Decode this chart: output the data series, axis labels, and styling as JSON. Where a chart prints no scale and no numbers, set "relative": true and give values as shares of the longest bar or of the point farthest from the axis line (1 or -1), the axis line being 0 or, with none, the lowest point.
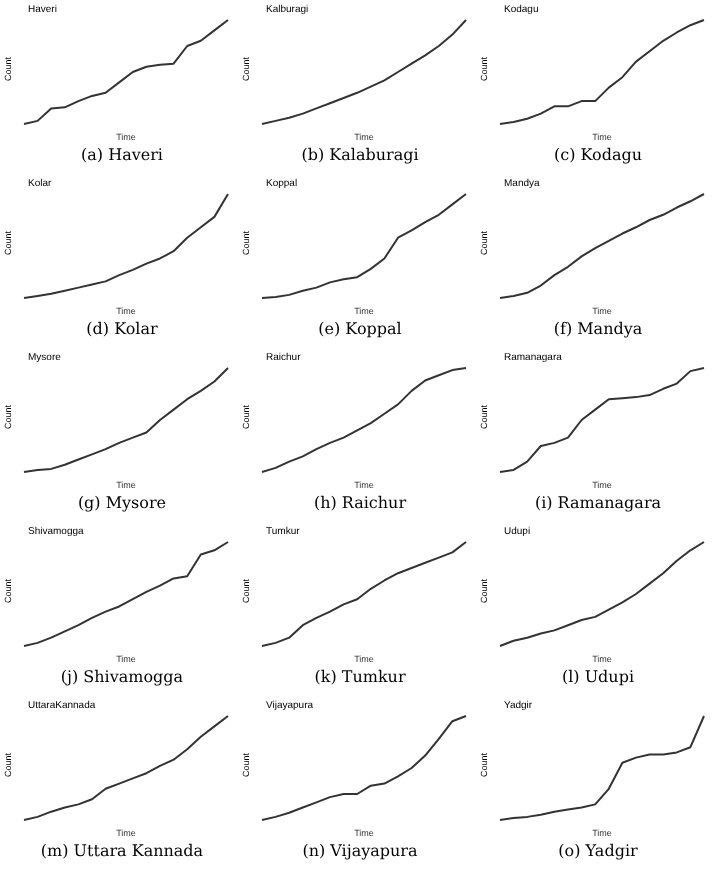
{
  "chart_data": [
    {
      "type": "line",
      "title": "Haveri",
      "xlabel": "Time",
      "ylabel": "Count",
      "annotations": [
        "(a) Haveri"
      ],
      "relative": true,
      "tick_labels": false,
      "categories": [
        null,
        null,
        null,
        null,
        null,
        null,
        null,
        null,
        null,
        null,
        null,
        null,
        null,
        null,
        null,
        null
      ],
      "series": [
        {
          "color": "#333333",
          "values": [
            0,
            0.03,
            0.15,
            0.16,
            0.22,
            0.27,
            0.3,
            0.4,
            0.5,
            0.55,
            0.57,
            0.58,
            0.75,
            0.8,
            0.9,
            1
          ]
        }
      ]
    },
    {
      "type": "line",
      "title": "Kalburagi",
      "xlabel": "Time",
      "ylabel": "Count",
      "annotations": [
        "(b) Kalaburagi"
      ],
      "relative": true,
      "tick_labels": false,
      "categories": [
        null,
        null,
        null,
        null,
        null,
        null,
        null,
        null,
        null,
        null,
        null,
        null,
        null,
        null,
        null,
        null
      ],
      "series": [
        {
          "color": "#333333",
          "values": [
            0,
            0.03,
            0.06,
            0.1,
            0.15,
            0.2,
            0.25,
            0.3,
            0.36,
            0.42,
            0.5,
            0.58,
            0.66,
            0.75,
            0.86,
            1
          ]
        }
      ]
    },
    {
      "type": "line",
      "title": "Kodagu",
      "xlabel": "Time",
      "ylabel": "Count",
      "annotations": [
        "(c) Kodagu"
      ],
      "relative": true,
      "tick_labels": false,
      "categories": [
        null,
        null,
        null,
        null,
        null,
        null,
        null,
        null,
        null,
        null,
        null,
        null,
        null,
        null,
        null,
        null
      ],
      "series": [
        {
          "color": "#333333",
          "values": [
            0,
            0.02,
            0.05,
            0.1,
            0.17,
            0.17,
            0.22,
            0.22,
            0.35,
            0.45,
            0.6,
            0.7,
            0.8,
            0.88,
            0.95,
            1
          ]
        }
      ]
    },
    {
      "type": "line",
      "title": "Kolar",
      "xlabel": "Time",
      "ylabel": "Count",
      "annotations": [
        "(d) Kolar"
      ],
      "relative": true,
      "tick_labels": false,
      "categories": [
        null,
        null,
        null,
        null,
        null,
        null,
        null,
        null,
        null,
        null,
        null,
        null,
        null,
        null,
        null,
        null
      ],
      "series": [
        {
          "color": "#333333",
          "values": [
            0,
            0.02,
            0.04,
            0.07,
            0.1,
            0.13,
            0.16,
            0.22,
            0.27,
            0.33,
            0.38,
            0.45,
            0.58,
            0.68,
            0.78,
            1
          ]
        }
      ]
    },
    {
      "type": "line",
      "title": "Koppal",
      "xlabel": "Time",
      "ylabel": "Count",
      "annotations": [
        "(e) Koppal"
      ],
      "relative": true,
      "tick_labels": false,
      "categories": [
        null,
        null,
        null,
        null,
        null,
        null,
        null,
        null,
        null,
        null,
        null,
        null,
        null,
        null,
        null,
        null
      ],
      "series": [
        {
          "color": "#333333",
          "values": [
            0,
            0.01,
            0.03,
            0.07,
            0.1,
            0.15,
            0.18,
            0.2,
            0.28,
            0.38,
            0.58,
            0.65,
            0.73,
            0.8,
            0.9,
            1
          ]
        }
      ]
    },
    {
      "type": "line",
      "title": "Mandya",
      "xlabel": "Time",
      "ylabel": "Count",
      "annotations": [
        "(f) Mandya"
      ],
      "relative": true,
      "tick_labels": false,
      "categories": [
        null,
        null,
        null,
        null,
        null,
        null,
        null,
        null,
        null,
        null,
        null,
        null,
        null,
        null,
        null,
        null
      ],
      "series": [
        {
          "color": "#333333",
          "values": [
            0,
            0.02,
            0.05,
            0.12,
            0.22,
            0.3,
            0.4,
            0.48,
            0.55,
            0.62,
            0.68,
            0.75,
            0.8,
            0.87,
            0.93,
            1
          ]
        }
      ]
    },
    {
      "type": "line",
      "title": "Mysore",
      "xlabel": "Time",
      "ylabel": "Count",
      "annotations": [
        "(g) Mysore"
      ],
      "relative": true,
      "tick_labels": false,
      "categories": [
        null,
        null,
        null,
        null,
        null,
        null,
        null,
        null,
        null,
        null,
        null,
        null,
        null,
        null,
        null,
        null
      ],
      "series": [
        {
          "color": "#333333",
          "values": [
            0,
            0.02,
            0.03,
            0.07,
            0.12,
            0.17,
            0.22,
            0.28,
            0.33,
            0.38,
            0.5,
            0.6,
            0.7,
            0.78,
            0.87,
            1
          ]
        }
      ]
    },
    {
      "type": "line",
      "title": "Raichur",
      "xlabel": "Time",
      "ylabel": "Count",
      "annotations": [
        "(h) Raichur"
      ],
      "relative": true,
      "tick_labels": false,
      "categories": [
        null,
        null,
        null,
        null,
        null,
        null,
        null,
        null,
        null,
        null,
        null,
        null,
        null,
        null,
        null,
        null
      ],
      "series": [
        {
          "color": "#333333",
          "values": [
            0,
            0.04,
            0.1,
            0.15,
            0.22,
            0.28,
            0.33,
            0.4,
            0.47,
            0.56,
            0.65,
            0.78,
            0.88,
            0.93,
            0.98,
            1
          ]
        }
      ]
    },
    {
      "type": "line",
      "title": "Ramanagara",
      "xlabel": "Time",
      "ylabel": "Count",
      "annotations": [
        "(i) Ramanagara"
      ],
      "relative": true,
      "tick_labels": false,
      "categories": [
        null,
        null,
        null,
        null,
        null,
        null,
        null,
        null,
        null,
        null,
        null,
        null,
        null,
        null,
        null,
        null
      ],
      "series": [
        {
          "color": "#333333",
          "values": [
            0,
            0.02,
            0.1,
            0.25,
            0.28,
            0.33,
            0.5,
            0.6,
            0.7,
            0.71,
            0.72,
            0.74,
            0.8,
            0.85,
            0.97,
            1
          ]
        }
      ]
    },
    {
      "type": "line",
      "title": "Shivamogga",
      "xlabel": "Time",
      "ylabel": "Count",
      "annotations": [
        "(j) Shivamogga"
      ],
      "relative": true,
      "tick_labels": false,
      "categories": [
        null,
        null,
        null,
        null,
        null,
        null,
        null,
        null,
        null,
        null,
        null,
        null,
        null,
        null,
        null,
        null
      ],
      "series": [
        {
          "color": "#333333",
          "values": [
            0,
            0.03,
            0.08,
            0.14,
            0.2,
            0.27,
            0.33,
            0.38,
            0.45,
            0.52,
            0.58,
            0.65,
            0.67,
            0.88,
            0.92,
            1
          ]
        }
      ]
    },
    {
      "type": "line",
      "title": "Tumkur",
      "xlabel": "Time",
      "ylabel": "Count",
      "annotations": [
        "(k) Tumkur"
      ],
      "relative": true,
      "tick_labels": false,
      "categories": [
        null,
        null,
        null,
        null,
        null,
        null,
        null,
        null,
        null,
        null,
        null,
        null,
        null,
        null,
        null,
        null
      ],
      "series": [
        {
          "color": "#333333",
          "values": [
            0,
            0.03,
            0.08,
            0.2,
            0.27,
            0.33,
            0.4,
            0.45,
            0.55,
            0.63,
            0.7,
            0.75,
            0.8,
            0.85,
            0.9,
            1
          ]
        }
      ]
    },
    {
      "type": "line",
      "title": "Udupi",
      "xlabel": "Time",
      "ylabel": "Count",
      "annotations": [
        "(l) Udupi"
      ],
      "relative": true,
      "tick_labels": false,
      "categories": [
        null,
        null,
        null,
        null,
        null,
        null,
        null,
        null,
        null,
        null,
        null,
        null,
        null,
        null,
        null,
        null
      ],
      "series": [
        {
          "color": "#333333",
          "values": [
            0,
            0.05,
            0.08,
            0.12,
            0.15,
            0.2,
            0.25,
            0.28,
            0.35,
            0.42,
            0.5,
            0.6,
            0.7,
            0.82,
            0.92,
            1
          ]
        }
      ]
    },
    {
      "type": "line",
      "title": "UttaraKannada",
      "xlabel": "Time",
      "ylabel": "Count",
      "annotations": [
        "(m) Uttara Kannada"
      ],
      "relative": true,
      "tick_labels": false,
      "categories": [
        null,
        null,
        null,
        null,
        null,
        null,
        null,
        null,
        null,
        null,
        null,
        null,
        null,
        null,
        null,
        null
      ],
      "series": [
        {
          "color": "#333333",
          "values": [
            0,
            0.03,
            0.08,
            0.12,
            0.15,
            0.2,
            0.3,
            0.35,
            0.4,
            0.45,
            0.52,
            0.58,
            0.68,
            0.8,
            0.9,
            1
          ]
        }
      ]
    },
    {
      "type": "line",
      "title": "Vijayapura",
      "xlabel": "Time",
      "ylabel": "Count",
      "annotations": [
        "(n) Vijayapura"
      ],
      "relative": true,
      "tick_labels": false,
      "categories": [
        null,
        null,
        null,
        null,
        null,
        null,
        null,
        null,
        null,
        null,
        null,
        null,
        null,
        null,
        null,
        null
      ],
      "series": [
        {
          "color": "#333333",
          "values": [
            0,
            0.03,
            0.07,
            0.12,
            0.17,
            0.22,
            0.25,
            0.25,
            0.33,
            0.35,
            0.42,
            0.5,
            0.62,
            0.78,
            0.95,
            1
          ]
        }
      ]
    },
    {
      "type": "line",
      "title": "Yadgir",
      "xlabel": "Time",
      "ylabel": "Count",
      "annotations": [
        "(o) Yadgir"
      ],
      "relative": true,
      "tick_labels": false,
      "categories": [
        null,
        null,
        null,
        null,
        null,
        null,
        null,
        null,
        null,
        null,
        null,
        null,
        null,
        null,
        null,
        null
      ],
      "series": [
        {
          "color": "#333333",
          "values": [
            0,
            0.02,
            0.03,
            0.05,
            0.08,
            0.1,
            0.12,
            0.15,
            0.3,
            0.55,
            0.6,
            0.63,
            0.63,
            0.65,
            0.7,
            1
          ]
        }
      ]
    }
  ]
}
